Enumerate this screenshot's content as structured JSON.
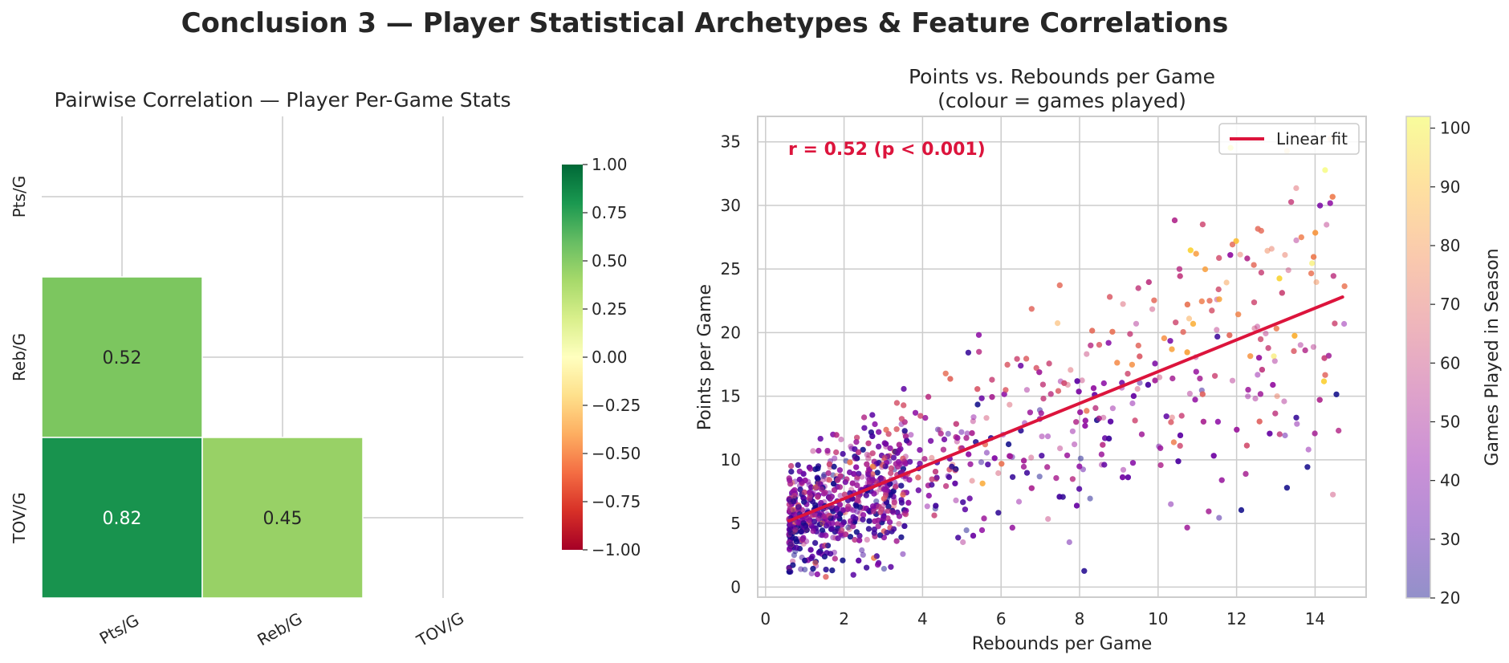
{
  "suptitle": "Conclusion 3 — Player Statistical Archetypes & Feature Correlations",
  "chart_data": [
    {
      "type": "heatmap",
      "title": "Pairwise Correlation — Player Per-Game Stats",
      "row_labels": [
        "Pts/G",
        "Reb/G",
        "TOV/G"
      ],
      "col_labels": [
        "Pts/G",
        "Reb/G",
        "TOV/G"
      ],
      "cells": [
        {
          "row": 1,
          "col": 0,
          "value": 0.52,
          "label": "0.52",
          "color": "#7cc65f"
        },
        {
          "row": 2,
          "col": 0,
          "value": 0.82,
          "label": "0.82",
          "color": "#18934e"
        },
        {
          "row": 2,
          "col": 1,
          "value": 0.45,
          "label": "0.45",
          "color": "#98d166"
        }
      ],
      "mask": "upper triangle incl. diagonal",
      "vmin": -1,
      "vmax": 1,
      "colormap": "RdYlGn",
      "colorbar_ticks": [
        "1.00",
        "0.75",
        "0.50",
        "0.25",
        "0.00",
        "−0.25",
        "−0.50",
        "−0.75",
        "−1.00"
      ],
      "grid": true
    },
    {
      "type": "scatter",
      "title_line1": "Points vs. Rebounds per Game",
      "title_line2": "(colour = games played)",
      "xlabel": "Rebounds per Game",
      "ylabel": "Points per Game",
      "xlim": [
        -0.2,
        15.3
      ],
      "ylim": [
        -0.8,
        37.0
      ],
      "xticks": [
        0,
        2,
        4,
        6,
        8,
        10,
        12,
        14
      ],
      "yticks": [
        0,
        5,
        10,
        15,
        20,
        25,
        30,
        35
      ],
      "n_points_shown_approx": 2600,
      "point_model": "points ≈ 4.45 + 1.245 × rebounds with wide scatter; colour by games played",
      "fit_line": {
        "name": "Linear fit",
        "x": [
          0.6,
          14.7
        ],
        "y": [
          5.2,
          22.8
        ],
        "color": "#dc143c"
      },
      "annotation": "r = 0.52  (p < 0.001)",
      "colorbar": {
        "label": "Games Played in Season",
        "min": 20,
        "max": 102,
        "ticks": [
          20,
          30,
          40,
          50,
          60,
          70,
          80,
          90,
          100
        ],
        "colormap": "plasma"
      },
      "legend": {
        "position": "upper right",
        "entries": [
          "Linear fit"
        ]
      },
      "grid": true
    }
  ]
}
